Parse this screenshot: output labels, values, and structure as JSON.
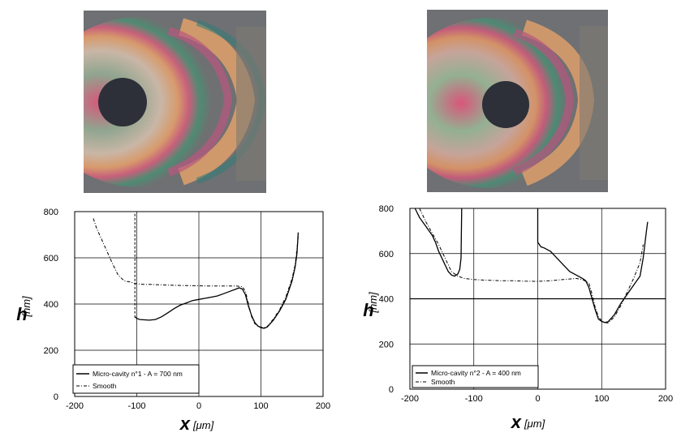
{
  "figures": [
    {
      "photo": {
        "name": "micro-cavity-1-photo",
        "icon": "interference-fringes-image"
      },
      "chart_data": {
        "type": "line",
        "xlabel_var": "x",
        "xlabel_unit": "[μm]",
        "ylabel_var": "h",
        "ylabel_unit": "[nm]",
        "xlim": [
          -200,
          200
        ],
        "ylim": [
          0,
          800
        ],
        "xticks": [
          "-200",
          "-100",
          "0",
          "100",
          "200"
        ],
        "yticks": [
          "0",
          "200",
          "400",
          "600",
          "800"
        ],
        "grid": true,
        "legend_position": "bottom-left",
        "series": [
          {
            "name": "Micro-cavity n°1 - A = 700 nm",
            "style": "solid",
            "points": [
              [
                -103,
                345
              ],
              [
                -100,
                338
              ],
              [
                -95,
                333
              ],
              [
                -90,
                332
              ],
              [
                -80,
                330
              ],
              [
                -70,
                333
              ],
              [
                -60,
                345
              ],
              [
                -50,
                362
              ],
              [
                -40,
                380
              ],
              [
                -30,
                395
              ],
              [
                -20,
                405
              ],
              [
                -10,
                415
              ],
              [
                0,
                420
              ],
              [
                10,
                425
              ],
              [
                20,
                430
              ],
              [
                30,
                435
              ],
              [
                40,
                445
              ],
              [
                50,
                455
              ],
              [
                60,
                465
              ],
              [
                65,
                470
              ],
              [
                70,
                465
              ],
              [
                75,
                440
              ],
              [
                80,
                390
              ],
              [
                85,
                350
              ],
              [
                90,
                320
              ],
              [
                95,
                305
              ],
              [
                100,
                298
              ],
              [
                105,
                295
              ],
              [
                110,
                300
              ],
              [
                120,
                330
              ],
              [
                130,
                370
              ],
              [
                140,
                420
              ],
              [
                150,
                500
              ],
              [
                155,
                560
              ],
              [
                158,
                620
              ],
              [
                160,
                710
              ]
            ]
          },
          {
            "name": "Smooth",
            "style": "dashdot",
            "points": [
              [
                -170,
                770
              ],
              [
                -165,
                730
              ],
              [
                -160,
                700
              ],
              [
                -150,
                640
              ],
              [
                -140,
                580
              ],
              [
                -130,
                525
              ],
              [
                -120,
                500
              ],
              [
                -110,
                495
              ],
              [
                -105,
                490
              ],
              [
                -100,
                488
              ],
              [
                -90,
                485
              ],
              [
                -80,
                485
              ],
              [
                -60,
                483
              ],
              [
                -40,
                481
              ],
              [
                -20,
                480
              ],
              [
                0,
                479
              ],
              [
                20,
                478
              ],
              [
                40,
                478
              ],
              [
                60,
                478
              ],
              [
                70,
                475
              ],
              [
                75,
                455
              ],
              [
                80,
                400
              ],
              [
                85,
                345
              ],
              [
                90,
                315
              ],
              [
                95,
                305
              ],
              [
                100,
                300
              ],
              [
                105,
                298
              ],
              [
                110,
                302
              ],
              [
                120,
                335
              ],
              [
                130,
                375
              ],
              [
                140,
                430
              ],
              [
                150,
                510
              ],
              [
                155,
                570
              ],
              [
                158,
                640
              ],
              [
                160,
                690
              ]
            ]
          },
          {
            "name": "",
            "style": "dashed",
            "points": [
              [
                -103,
                790
              ],
              [
                -103,
                340
              ]
            ]
          }
        ],
        "legend": [
          "Micro-cavity n°1 - A = 700 nm",
          "Smooth"
        ]
      }
    },
    {
      "photo": {
        "name": "micro-cavity-2-photo",
        "icon": "interference-fringes-image"
      },
      "chart_data": {
        "type": "line",
        "xlabel_var": "x",
        "xlabel_unit": "[μm]",
        "ylabel_var": "h",
        "ylabel_unit": "[nm]",
        "xlim": [
          -200,
          200
        ],
        "ylim": [
          0,
          800
        ],
        "xticks": [
          "-200",
          "-100",
          "0",
          "100",
          "200"
        ],
        "yticks": [
          "0",
          "200",
          "400",
          "600",
          "800"
        ],
        "grid": true,
        "legend_position": "bottom-left",
        "series": [
          {
            "name": "Micro-cavity n°2 - A = 400 nm",
            "style": "solid",
            "points": [
              [
                -192,
                800
              ],
              [
                -185,
                760
              ],
              [
                -175,
                720
              ],
              [
                -165,
                680
              ],
              [
                -160,
                650
              ],
              [
                -155,
                610
              ],
              [
                -150,
                580
              ],
              [
                -145,
                550
              ],
              [
                -140,
                520
              ],
              [
                -135,
                505
              ],
              [
                -130,
                500
              ],
              [
                -125,
                510
              ],
              [
                -122,
                530
              ],
              [
                -120,
                580
              ],
              [
                -119,
                800
              ]
            ],
            "points2": [
              [
                0,
                800
              ],
              [
                0,
                650
              ],
              [
                5,
                630
              ],
              [
                10,
                625
              ],
              [
                20,
                610
              ],
              [
                30,
                580
              ],
              [
                40,
                550
              ],
              [
                50,
                520
              ],
              [
                60,
                505
              ],
              [
                70,
                490
              ],
              [
                75,
                480
              ],
              [
                80,
                450
              ],
              [
                85,
                400
              ],
              [
                90,
                350
              ],
              [
                95,
                310
              ],
              [
                100,
                300
              ],
              [
                105,
                295
              ],
              [
                110,
                298
              ],
              [
                120,
                330
              ],
              [
                130,
                380
              ],
              [
                140,
                420
              ],
              [
                150,
                460
              ],
              [
                160,
                500
              ],
              [
                165,
                580
              ],
              [
                170,
                700
              ],
              [
                172,
                740
              ]
            ]
          },
          {
            "name": "Smooth",
            "style": "dashdot",
            "points": [
              [
                -185,
                800
              ],
              [
                -175,
                740
              ],
              [
                -165,
                690
              ],
              [
                -155,
                640
              ],
              [
                -145,
                580
              ],
              [
                -135,
                520
              ],
              [
                -125,
                500
              ],
              [
                -115,
                490
              ],
              [
                -100,
                485
              ],
              [
                -80,
                482
              ],
              [
                -60,
                480
              ],
              [
                -40,
                480
              ],
              [
                -20,
                478
              ],
              [
                0,
                477
              ],
              [
                20,
                480
              ],
              [
                40,
                485
              ],
              [
                60,
                490
              ],
              [
                70,
                485
              ],
              [
                80,
                470
              ],
              [
                85,
                420
              ],
              [
                90,
                360
              ],
              [
                95,
                320
              ],
              [
                100,
                302
              ],
              [
                105,
                295
              ],
              [
                110,
                293
              ],
              [
                120,
                320
              ],
              [
                130,
                370
              ],
              [
                140,
                430
              ],
              [
                150,
                490
              ],
              [
                160,
                560
              ],
              [
                165,
                640
              ]
            ]
          }
        ],
        "legend": [
          "Micro-cavity n°2 - A = 400 nm",
          "Smooth"
        ]
      }
    }
  ]
}
